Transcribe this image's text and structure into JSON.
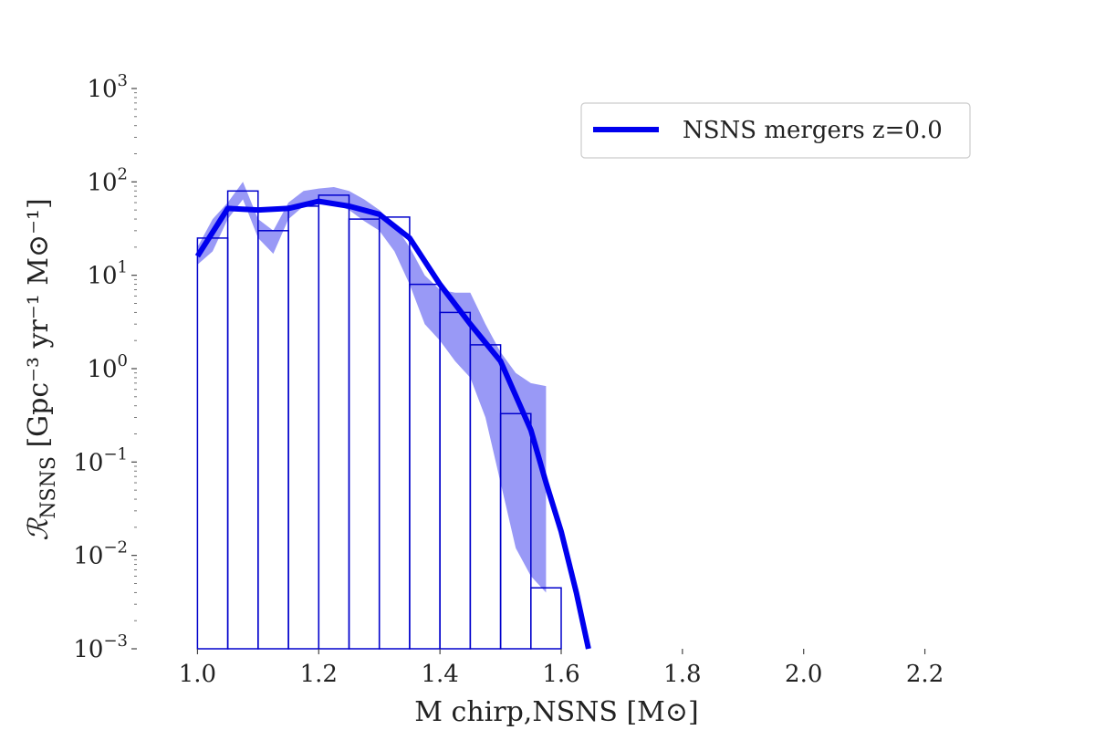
{
  "chart_data": {
    "type": "line",
    "xlabel": "M chirp,NSNS [M⊙]",
    "ylabel": "ℛNSNS [Gpc⁻³ yr⁻¹ M⊙⁻¹]",
    "ylabel_parts": {
      "symbol": "ℛ",
      "subscript": "NSNS",
      "units": " [Gpc⁻³ yr⁻¹ M⊙⁻¹]"
    },
    "xlim": [
      0.9,
      2.3
    ],
    "ylim": [
      0.001,
      1000
    ],
    "yscale": "log",
    "grid": false,
    "legend_position": "top-right",
    "x_ticks": [
      1.0,
      1.2,
      1.4,
      1.6,
      1.8,
      2.0,
      2.2
    ],
    "x_tick_labels": [
      "1.0",
      "1.2",
      "1.4",
      "1.6",
      "1.8",
      "2.0",
      "2.2"
    ],
    "y_tick_labels": [
      {
        "base": "10",
        "exp": "−3",
        "value": 0.001
      },
      {
        "base": "10",
        "exp": "−2",
        "value": 0.01
      },
      {
        "base": "10",
        "exp": "−1",
        "value": 0.1
      },
      {
        "base": "10",
        "exp": "0",
        "value": 1
      },
      {
        "base": "10",
        "exp": "1",
        "value": 10
      },
      {
        "base": "10",
        "exp": "2",
        "value": 100
      },
      {
        "base": "10",
        "exp": "3",
        "value": 1000
      }
    ],
    "colors": {
      "line": "#0000ee",
      "band": "#6e6ef2",
      "hist": "#0000cc"
    },
    "histogram": {
      "bin_edges": [
        1.0,
        1.05,
        1.1,
        1.15,
        1.2,
        1.25,
        1.3,
        1.35,
        1.4,
        1.45,
        1.5,
        1.55,
        1.6
      ],
      "values": [
        25,
        80,
        30,
        55,
        72,
        40,
        42,
        8,
        4,
        1.8,
        0.33,
        0.0045
      ]
    },
    "band": {
      "x": [
        1.0,
        1.025,
        1.05,
        1.075,
        1.1,
        1.125,
        1.15,
        1.175,
        1.2,
        1.225,
        1.25,
        1.275,
        1.3,
        1.325,
        1.35,
        1.375,
        1.4,
        1.425,
        1.45,
        1.475,
        1.5,
        1.525,
        1.55,
        1.575
      ],
      "upper": [
        20,
        40,
        60,
        100,
        40,
        30,
        60,
        80,
        85,
        88,
        80,
        65,
        50,
        35,
        20,
        10,
        7,
        6.5,
        6.5,
        3,
        1.5,
        0.9,
        0.7,
        0.65
      ],
      "lower": [
        13,
        18,
        40,
        65,
        25,
        17,
        40,
        55,
        60,
        58,
        50,
        38,
        30,
        18,
        8,
        3,
        2,
        1.2,
        0.8,
        0.3,
        0.06,
        0.012,
        0.006,
        0.004
      ]
    },
    "series": [
      {
        "name": "NSNS mergers z=0.0",
        "x": [
          1.0,
          1.05,
          1.1,
          1.15,
          1.2,
          1.25,
          1.3,
          1.35,
          1.4,
          1.45,
          1.5,
          1.55,
          1.575,
          1.6,
          1.625,
          1.645
        ],
        "values": [
          16,
          52,
          50,
          52,
          62,
          55,
          45,
          25,
          8,
          3,
          1.2,
          0.22,
          0.06,
          0.018,
          0.004,
          0.001
        ]
      }
    ]
  }
}
